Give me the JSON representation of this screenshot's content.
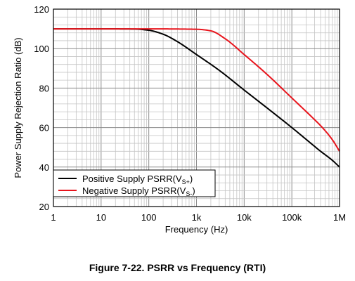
{
  "chart_data": {
    "type": "line",
    "xlabel": "Frequency (Hz)",
    "ylabel": "Power Supply Rejection Ratio (dB)",
    "x_scale": "log",
    "xlim": [
      1,
      1000000
    ],
    "ylim": [
      20,
      120
    ],
    "x_ticks": [
      1,
      10,
      100,
      1000,
      10000,
      100000,
      1000000
    ],
    "x_tick_labels": [
      "1",
      "10",
      "100",
      "1k",
      "10k",
      "100k",
      "1M"
    ],
    "y_ticks": [
      20,
      40,
      60,
      80,
      100,
      120
    ],
    "y_tick_labels": [
      "20",
      "40",
      "60",
      "80",
      "100",
      "120"
    ],
    "grid": true,
    "legend_position": "bottom-left",
    "series": [
      {
        "name_main": "Positive Supply PSRR(V",
        "name_sub": "S+",
        "name_tail": ")",
        "color": "#000000",
        "points": [
          [
            1,
            110
          ],
          [
            10,
            110
          ],
          [
            50,
            109.9
          ],
          [
            100,
            109.3
          ],
          [
            200,
            107.3
          ],
          [
            400,
            103.5
          ],
          [
            1000,
            97
          ],
          [
            3000,
            89
          ],
          [
            10000,
            79
          ],
          [
            30000,
            70
          ],
          [
            100000,
            60
          ],
          [
            200000,
            54
          ],
          [
            400000,
            48
          ],
          [
            700000,
            43.5
          ],
          [
            1000000,
            40
          ]
        ]
      },
      {
        "name_main": "Negative Supply PSRR(V",
        "name_sub": "S-",
        "name_tail": ")",
        "color": "#e8141c",
        "points": [
          [
            1,
            110
          ],
          [
            10,
            110
          ],
          [
            100,
            110
          ],
          [
            1000,
            109.8
          ],
          [
            2000,
            109
          ],
          [
            4000,
            105
          ],
          [
            10000,
            97
          ],
          [
            30000,
            87
          ],
          [
            100000,
            75
          ],
          [
            300000,
            64
          ],
          [
            400000,
            61
          ],
          [
            700000,
            54
          ],
          [
            1000000,
            48
          ]
        ]
      }
    ]
  },
  "caption": "Figure 7-22. PSRR vs Frequency (RTI)"
}
